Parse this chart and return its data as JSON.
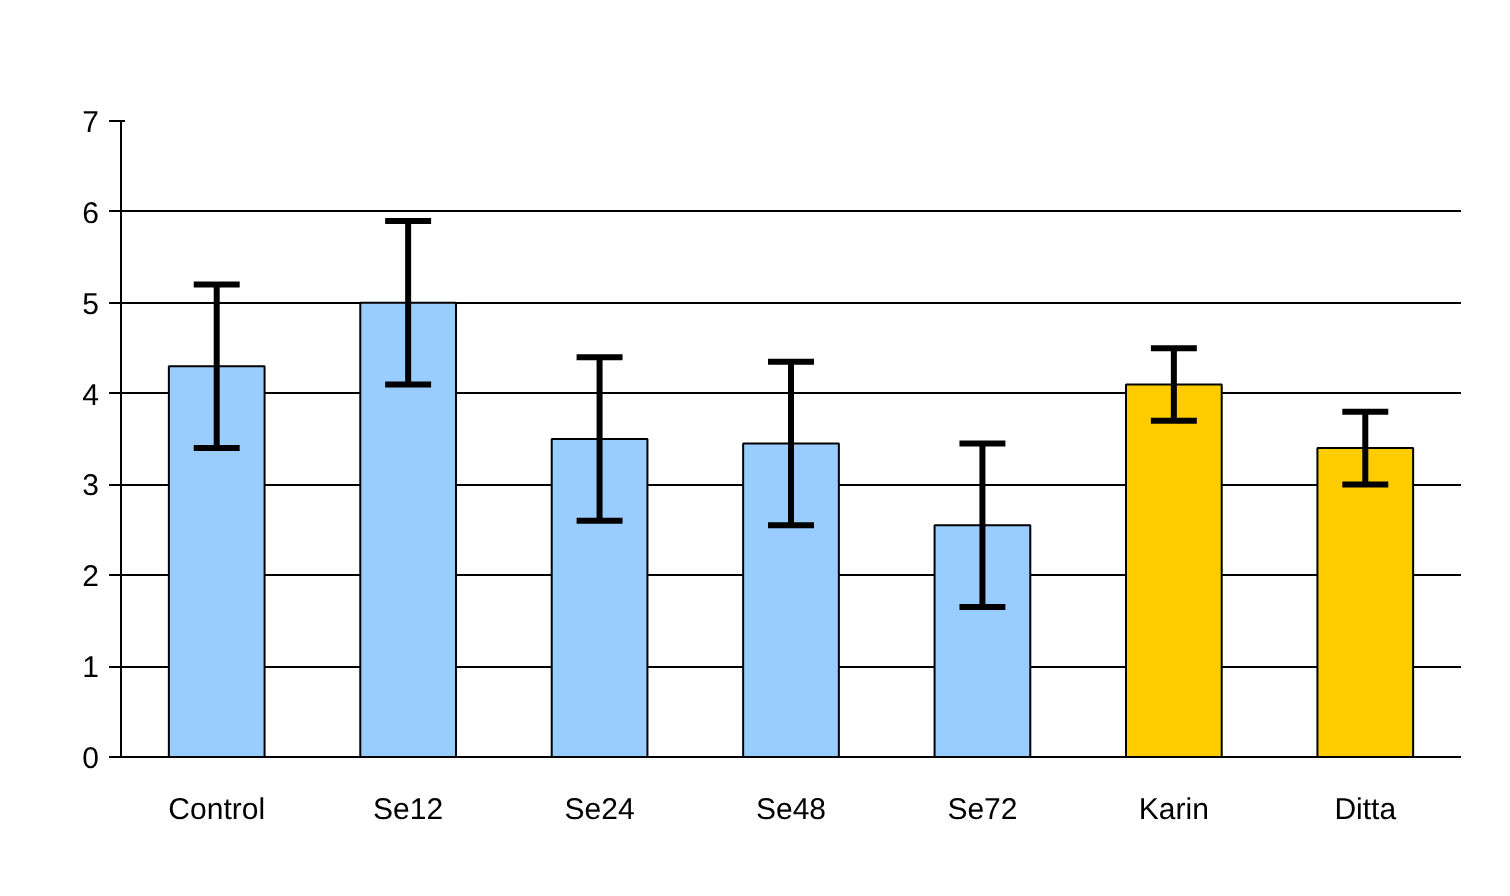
{
  "chart_data": {
    "type": "bar",
    "categories": [
      "Control",
      "Se12",
      "Se24",
      "Se48",
      "Se72",
      "Karin",
      "Ditta"
    ],
    "values": [
      4.3,
      5.0,
      3.5,
      3.45,
      2.55,
      4.1,
      3.4
    ],
    "colors": [
      "#99ccff",
      "#99ccff",
      "#99ccff",
      "#99ccff",
      "#99ccff",
      "#ffcc00",
      "#ffcc00"
    ],
    "errors": [
      0.9,
      0.9,
      0.9,
      0.9,
      0.9,
      0.4,
      0.4
    ],
    "ylim": [
      0,
      7
    ],
    "yticks": [
      0,
      1,
      2,
      3,
      4,
      5,
      6,
      7
    ],
    "grid": "y"
  }
}
